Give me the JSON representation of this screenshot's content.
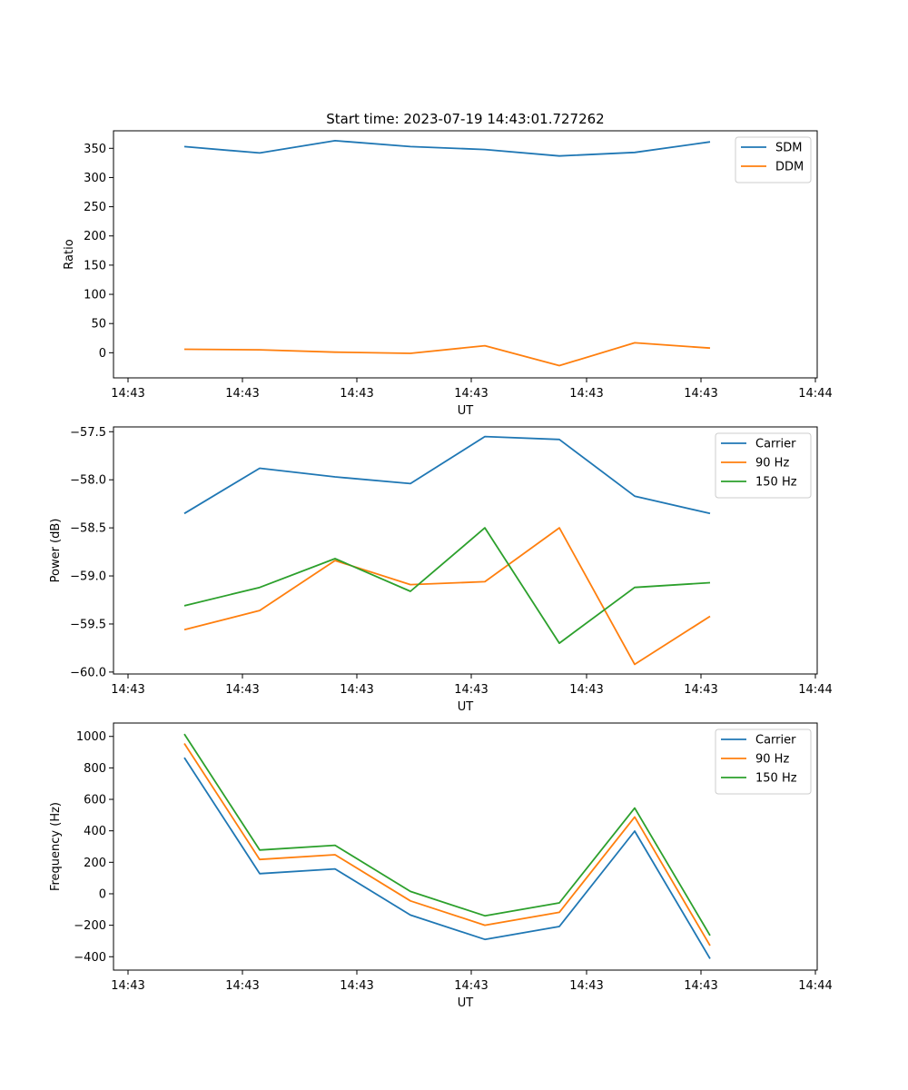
{
  "chart_data": [
    {
      "type": "line",
      "title": "Start time: 2023-07-19 14:43:01.727262",
      "xlabel": "UT",
      "ylabel": "Ratio",
      "xticks": [
        "14:43",
        "14:43",
        "14:43",
        "14:43",
        "14:43",
        "14:43",
        "14:44"
      ],
      "yticks": [
        "0",
        "50",
        "100",
        "150",
        "200",
        "250",
        "300",
        "350"
      ],
      "ytick_values": [
        0,
        50,
        100,
        150,
        200,
        250,
        300,
        350
      ],
      "ylim": [
        -43,
        380
      ],
      "legend_position": "upper-right",
      "series": [
        {
          "name": "SDM",
          "color": "#1f77b4",
          "values": [
            353,
            342,
            363,
            353,
            348,
            337,
            343,
            361
          ]
        },
        {
          "name": "DDM",
          "color": "#ff7f0e",
          "values": [
            6,
            5,
            1,
            -1,
            12,
            -22,
            17,
            8
          ]
        }
      ]
    },
    {
      "type": "line",
      "title": "",
      "xlabel": "UT",
      "ylabel": "Power (dB)",
      "xticks": [
        "14:43",
        "14:43",
        "14:43",
        "14:43",
        "14:43",
        "14:43",
        "14:44"
      ],
      "yticks": [
        "−60.0",
        "−59.5",
        "−59.0",
        "−58.5",
        "−58.0",
        "−57.5"
      ],
      "ytick_values": [
        -60.0,
        -59.5,
        -59.0,
        -58.5,
        -58.0,
        -57.5
      ],
      "ylim": [
        -60.02,
        -57.45
      ],
      "legend_position": "upper-right",
      "series": [
        {
          "name": "Carrier",
          "color": "#1f77b4",
          "values": [
            -58.35,
            -57.88,
            -57.97,
            -58.04,
            -57.55,
            -57.58,
            -58.17,
            -58.35
          ]
        },
        {
          "name": "90 Hz",
          "color": "#ff7f0e",
          "values": [
            -59.56,
            -59.36,
            -58.84,
            -59.09,
            -59.06,
            -58.5,
            -59.92,
            -59.42
          ]
        },
        {
          "name": "150 Hz",
          "color": "#2ca02c",
          "values": [
            -59.31,
            -59.12,
            -58.82,
            -59.16,
            -58.5,
            -59.7,
            -59.12,
            -59.07
          ]
        }
      ]
    },
    {
      "type": "line",
      "title": "",
      "xlabel": "UT",
      "ylabel": "Frequency (Hz)",
      "xticks": [
        "14:43",
        "14:43",
        "14:43",
        "14:43",
        "14:43",
        "14:43",
        "14:44"
      ],
      "yticks": [
        "−400",
        "−200",
        "0",
        "200",
        "400",
        "600",
        "800",
        "1000"
      ],
      "ytick_values": [
        -400,
        -200,
        0,
        200,
        400,
        600,
        800,
        1000
      ],
      "ylim": [
        -485,
        1085
      ],
      "legend_position": "upper-right",
      "series": [
        {
          "name": "Carrier",
          "color": "#1f77b4",
          "values": [
            865,
            128,
            158,
            -135,
            -290,
            -208,
            398,
            -412
          ]
        },
        {
          "name": "90 Hz",
          "color": "#ff7f0e",
          "values": [
            955,
            218,
            248,
            -45,
            -200,
            -118,
            488,
            -330
          ]
        },
        {
          "name": "150 Hz",
          "color": "#2ca02c",
          "values": [
            1015,
            278,
            308,
            15,
            -140,
            -58,
            545,
            -265
          ]
        }
      ]
    }
  ]
}
